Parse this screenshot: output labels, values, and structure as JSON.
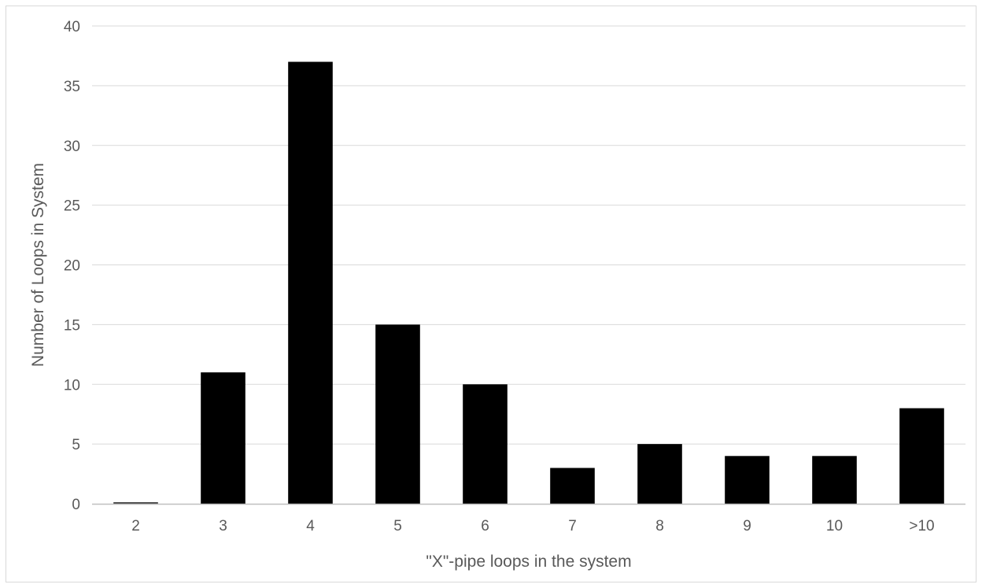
{
  "chart_data": {
    "type": "bar",
    "categories": [
      "2",
      "3",
      "4",
      "5",
      "6",
      "7",
      "8",
      "9",
      "10",
      ">10"
    ],
    "values": [
      0,
      11,
      37,
      15,
      10,
      3,
      5,
      4,
      4,
      8
    ],
    "xlabel": "\"X\"-pipe loops in the system",
    "ylabel": "Number of Loops in System",
    "ylim": [
      0,
      40
    ],
    "yticks": [
      0,
      5,
      10,
      15,
      20,
      25,
      30,
      35,
      40
    ],
    "grid": true,
    "legend": "none",
    "colors": {
      "bar": "#000000",
      "grid": "#d9d9d9",
      "text": "#595959"
    }
  }
}
